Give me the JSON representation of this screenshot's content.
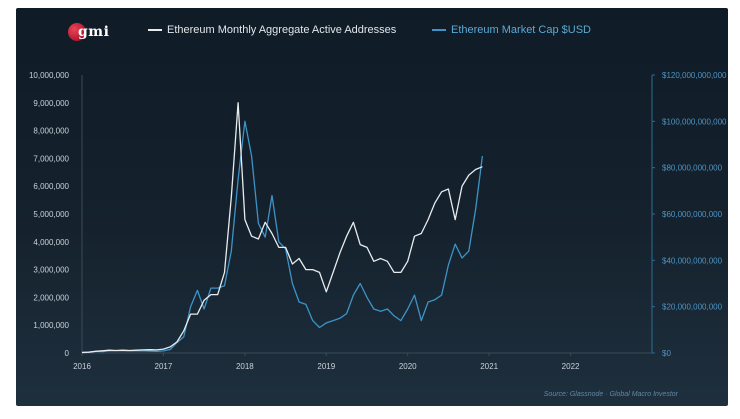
{
  "brand": {
    "logo_text": "gmi"
  },
  "source_text": "Source: Glassnode · Global Macro Investor",
  "colors": {
    "active_addresses": "#e8ecef",
    "market_cap": "#3e93c6",
    "left_axis_text": "#c9d2d9",
    "right_axis_text": "#4f94c2"
  },
  "chart_data": {
    "type": "line",
    "title": "",
    "legend": [
      "Ethereum Monthly Aggregate Active Addresses",
      "Ethereum Market Cap $USD"
    ],
    "legend_position": "top",
    "grid": false,
    "x_ticks": [
      "2016",
      "2017",
      "2018",
      "2019",
      "2020",
      "2021",
      "2022"
    ],
    "xlim": [
      "2016-01",
      "2022-12"
    ],
    "y_left": {
      "lim": [
        0,
        10000000
      ],
      "ticks": [
        "0",
        "1,000,000",
        "2,000,000",
        "3,000,000",
        "4,000,000",
        "5,000,000",
        "6,000,000",
        "7,000,000",
        "8,000,000",
        "9,000,000",
        "10,000,000"
      ]
    },
    "y_right": {
      "lim": [
        0,
        120000000000
      ],
      "ticks": [
        "$0",
        "$20,000,000,000",
        "$40,000,000,000",
        "$60,000,000,000",
        "$80,000,000,000",
        "$100,000,000,000",
        "$120,000,000,000"
      ]
    },
    "series": [
      {
        "name": "Ethereum Monthly Aggregate Active Addresses",
        "axis": "left",
        "points": [
          [
            "2016-01",
            20000
          ],
          [
            "2016-02",
            30000
          ],
          [
            "2016-03",
            60000
          ],
          [
            "2016-04",
            80000
          ],
          [
            "2016-05",
            100000
          ],
          [
            "2016-06",
            90000
          ],
          [
            "2016-07",
            100000
          ],
          [
            "2016-08",
            90000
          ],
          [
            "2016-09",
            100000
          ],
          [
            "2016-10",
            110000
          ],
          [
            "2016-11",
            120000
          ],
          [
            "2016-12",
            110000
          ],
          [
            "2017-01",
            140000
          ],
          [
            "2017-02",
            220000
          ],
          [
            "2017-03",
            400000
          ],
          [
            "2017-04",
            800000
          ],
          [
            "2017-05",
            1400000
          ],
          [
            "2017-06",
            1400000
          ],
          [
            "2017-07",
            1900000
          ],
          [
            "2017-08",
            2100000
          ],
          [
            "2017-09",
            2100000
          ],
          [
            "2017-10",
            2900000
          ],
          [
            "2017-11",
            5600000
          ],
          [
            "2017-12",
            9000000
          ],
          [
            "2018-01",
            4800000
          ],
          [
            "2018-02",
            4200000
          ],
          [
            "2018-03",
            4100000
          ],
          [
            "2018-04",
            4700000
          ],
          [
            "2018-05",
            4300000
          ],
          [
            "2018-06",
            3800000
          ],
          [
            "2018-07",
            3800000
          ],
          [
            "2018-08",
            3200000
          ],
          [
            "2018-09",
            3400000
          ],
          [
            "2018-10",
            3000000
          ],
          [
            "2018-11",
            3000000
          ],
          [
            "2018-12",
            2900000
          ],
          [
            "2019-01",
            2200000
          ],
          [
            "2019-02",
            2900000
          ],
          [
            "2019-03",
            3600000
          ],
          [
            "2019-04",
            4200000
          ],
          [
            "2019-05",
            4700000
          ],
          [
            "2019-06",
            3900000
          ],
          [
            "2019-07",
            3800000
          ],
          [
            "2019-08",
            3300000
          ],
          [
            "2019-09",
            3400000
          ],
          [
            "2019-10",
            3300000
          ],
          [
            "2019-11",
            2900000
          ],
          [
            "2019-12",
            2900000
          ],
          [
            "2020-01",
            3300000
          ],
          [
            "2020-02",
            4200000
          ],
          [
            "2020-03",
            4300000
          ],
          [
            "2020-04",
            4800000
          ],
          [
            "2020-05",
            5400000
          ],
          [
            "2020-06",
            5800000
          ],
          [
            "2020-07",
            5900000
          ],
          [
            "2020-08",
            4800000
          ],
          [
            "2020-09",
            6000000
          ],
          [
            "2020-10",
            6400000
          ],
          [
            "2020-11",
            6600000
          ],
          [
            "2020-12",
            6700000
          ]
        ]
      },
      {
        "name": "Ethereum Market Cap $USD",
        "axis": "right",
        "points": [
          [
            "2016-01",
            100000000
          ],
          [
            "2016-02",
            400000000
          ],
          [
            "2016-03",
            700000000
          ],
          [
            "2016-04",
            600000000
          ],
          [
            "2016-05",
            900000000
          ],
          [
            "2016-06",
            1000000000
          ],
          [
            "2016-07",
            1000000000
          ],
          [
            "2016-08",
            900000000
          ],
          [
            "2016-09",
            1000000000
          ],
          [
            "2016-10",
            900000000
          ],
          [
            "2016-11",
            800000000
          ],
          [
            "2016-12",
            700000000
          ],
          [
            "2017-01",
            900000000
          ],
          [
            "2017-02",
            1500000000
          ],
          [
            "2017-03",
            4500000000
          ],
          [
            "2017-04",
            7000000000
          ],
          [
            "2017-05",
            20000000000
          ],
          [
            "2017-06",
            27000000000
          ],
          [
            "2017-07",
            19000000000
          ],
          [
            "2017-08",
            28000000000
          ],
          [
            "2017-09",
            28000000000
          ],
          [
            "2017-10",
            29000000000
          ],
          [
            "2017-11",
            44000000000
          ],
          [
            "2017-12",
            75000000000
          ],
          [
            "2018-01",
            100000000000
          ],
          [
            "2018-02",
            85000000000
          ],
          [
            "2018-03",
            56000000000
          ],
          [
            "2018-04",
            50000000000
          ],
          [
            "2018-05",
            68000000000
          ],
          [
            "2018-06",
            48000000000
          ],
          [
            "2018-07",
            45000000000
          ],
          [
            "2018-08",
            30000000000
          ],
          [
            "2018-09",
            22000000000
          ],
          [
            "2018-10",
            21000000000
          ],
          [
            "2018-11",
            14000000000
          ],
          [
            "2018-12",
            11000000000
          ],
          [
            "2019-01",
            13000000000
          ],
          [
            "2019-02",
            14000000000
          ],
          [
            "2019-03",
            15000000000
          ],
          [
            "2019-04",
            17000000000
          ],
          [
            "2019-05",
            25000000000
          ],
          [
            "2019-06",
            30000000000
          ],
          [
            "2019-07",
            24000000000
          ],
          [
            "2019-08",
            19000000000
          ],
          [
            "2019-09",
            18000000000
          ],
          [
            "2019-10",
            19000000000
          ],
          [
            "2019-11",
            16000000000
          ],
          [
            "2019-12",
            14000000000
          ],
          [
            "2020-01",
            19000000000
          ],
          [
            "2020-02",
            25000000000
          ],
          [
            "2020-03",
            14000000000
          ],
          [
            "2020-04",
            22000000000
          ],
          [
            "2020-05",
            23000000000
          ],
          [
            "2020-06",
            25000000000
          ],
          [
            "2020-07",
            38000000000
          ],
          [
            "2020-08",
            47000000000
          ],
          [
            "2020-09",
            41000000000
          ],
          [
            "2020-10",
            44000000000
          ],
          [
            "2020-11",
            62000000000
          ],
          [
            "2020-12",
            85000000000
          ]
        ]
      }
    ]
  }
}
